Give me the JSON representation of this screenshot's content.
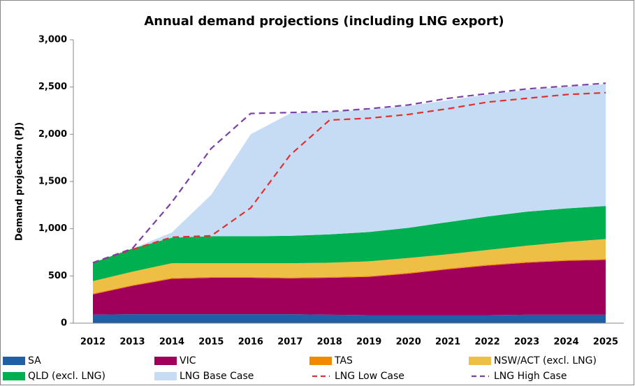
{
  "chart_data": {
    "type": "area",
    "title": "Annual demand projections (including LNG export)",
    "y_label": "Demand projection (PJ)",
    "categories": [
      "2012",
      "2013",
      "2014",
      "2015",
      "2016",
      "2017",
      "2018",
      "2019",
      "2020",
      "2021",
      "2022",
      "2023",
      "2024",
      "2025"
    ],
    "ylim": [
      0,
      3000
    ],
    "yticks": [
      0,
      500,
      {
        "value": 1000,
        "label": "1,000"
      },
      {
        "value": 1500,
        "label": "1,500"
      },
      {
        "value": 2000,
        "label": "2,000"
      },
      {
        "value": 2500,
        "label": "2,500"
      },
      {
        "value": 3000,
        "label": "3,000"
      }
    ],
    "stacked": true,
    "series": [
      {
        "name": "SA",
        "color": "#1f5fa6",
        "values": [
          90,
          95,
          95,
          95,
          95,
          95,
          90,
          85,
          85,
          85,
          85,
          90,
          90,
          90
        ]
      },
      {
        "name": "VIC",
        "color": "#a0005a",
        "values": [
          215,
          300,
          375,
          385,
          385,
          380,
          390,
          405,
          440,
          485,
          525,
          550,
          570,
          580
        ]
      },
      {
        "name": "TAS",
        "color": "#f28a00",
        "values": [
          10,
          10,
          10,
          10,
          10,
          10,
          10,
          10,
          10,
          10,
          10,
          10,
          10,
          10
        ]
      },
      {
        "name": "NSW/ACT (excl. LNG)",
        "color": "#eebf45",
        "values": [
          130,
          140,
          155,
          145,
          145,
          150,
          150,
          155,
          155,
          150,
          155,
          170,
          190,
          210
        ]
      },
      {
        "name": "QLD (excl. LNG)",
        "color": "#00b050",
        "values": [
          195,
          245,
          270,
          285,
          285,
          290,
          300,
          310,
          320,
          340,
          355,
          360,
          355,
          350
        ]
      },
      {
        "name": "LNG Base Case",
        "color": "#c6dcf5",
        "values": [
          0,
          0,
          55,
          440,
          1080,
          1295,
          1300,
          1295,
          1290,
          1290,
          1290,
          1290,
          1285,
          1290
        ]
      },
      {
        "name": "LNG Low Case",
        "color": "#e03030",
        "type": "line",
        "dashed": true,
        "values": [
          640,
          780,
          910,
          925,
          1220,
          1780,
          2150,
          2170,
          2210,
          2270,
          2340,
          2380,
          2420,
          2440
        ]
      },
      {
        "name": "LNG High Case",
        "color": "#7b3fa8",
        "type": "line",
        "dashed": true,
        "values": [
          640,
          790,
          1280,
          1850,
          2220,
          2230,
          2240,
          2270,
          2310,
          2380,
          2430,
          2480,
          2510,
          2540
        ]
      }
    ]
  }
}
